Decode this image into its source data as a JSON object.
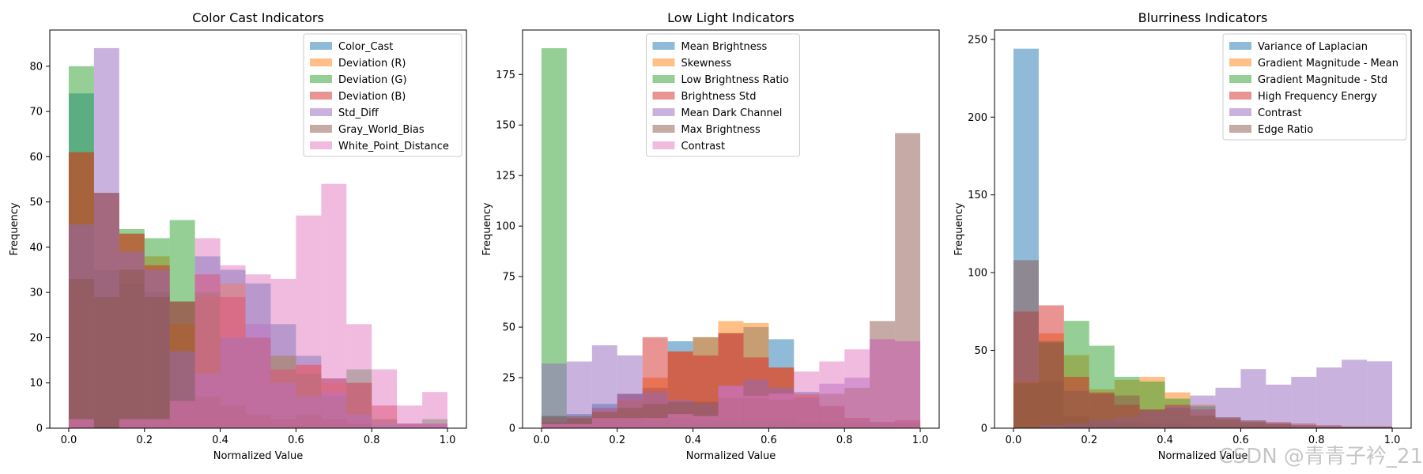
{
  "figure": {
    "xlabel": "Normalized Value",
    "ylabel": "Frequency"
  },
  "watermark": "CSDN @青青子衿_21",
  "chart_data": [
    {
      "type": "histogram",
      "title": "Color Cast Indicators",
      "xlabel": "Normalized Value",
      "ylabel": "Frequency",
      "xlim": [
        -0.05,
        1.05
      ],
      "ylim": [
        0,
        88
      ],
      "xticks": [
        0.0,
        0.2,
        0.4,
        0.6,
        0.8,
        1.0
      ],
      "yticks": [
        0,
        10,
        20,
        30,
        40,
        50,
        60,
        70,
        80
      ],
      "bins": 15,
      "legend_loc": "upper right",
      "series": [
        {
          "name": "Color_Cast",
          "color": "#1f77b4",
          "values": [
            74,
            35,
            32,
            30,
            28,
            38,
            35,
            32,
            23,
            16,
            11,
            10,
            0,
            0,
            0
          ]
        },
        {
          "name": "Deviation (R)",
          "color": "#ff7f0e",
          "values": [
            61,
            52,
            43,
            38,
            23,
            29,
            32,
            20,
            16,
            14,
            10,
            10,
            0,
            0,
            0
          ]
        },
        {
          "name": "Deviation (G)",
          "color": "#2ca02c",
          "values": [
            80,
            52,
            44,
            42,
            46,
            30,
            20,
            20,
            16,
            12,
            7,
            13,
            2,
            1,
            2
          ]
        },
        {
          "name": "Deviation (B)",
          "color": "#d62728",
          "values": [
            61,
            52,
            43,
            36,
            28,
            34,
            29,
            20,
            13,
            14,
            11,
            10,
            5,
            1,
            1
          ]
        },
        {
          "name": "Std_Diff",
          "color": "#9467bd",
          "values": [
            45,
            84,
            39,
            35,
            17,
            12,
            20,
            23,
            10,
            7,
            8,
            3,
            1,
            1,
            1
          ]
        },
        {
          "name": "Gray_World_Bias",
          "color": "#8c564b",
          "values": [
            33,
            29,
            35,
            29,
            6,
            7,
            5,
            3,
            2,
            3,
            2,
            1,
            0,
            0,
            0
          ]
        },
        {
          "name": "White_Point_Distance",
          "color": "#e377c2",
          "values": [
            2,
            0,
            2,
            2,
            6,
            42,
            36,
            34,
            33,
            47,
            54,
            23,
            13,
            5,
            8
          ]
        }
      ]
    },
    {
      "type": "histogram",
      "title": "Low Light Indicators",
      "xlabel": "Normalized Value",
      "ylabel": "Frequency",
      "xlim": [
        -0.05,
        1.05
      ],
      "ylim": [
        0,
        197
      ],
      "xticks": [
        0.0,
        0.2,
        0.4,
        0.6,
        0.8,
        1.0
      ],
      "yticks": [
        0,
        25,
        50,
        75,
        100,
        125,
        150,
        175
      ],
      "bins": 15,
      "legend_loc": "upper center",
      "series": [
        {
          "name": "Mean Brightness",
          "color": "#1f77b4",
          "values": [
            6,
            7,
            12,
            17,
            20,
            43,
            45,
            47,
            50,
            44,
            18,
            10,
            5,
            3,
            3
          ]
        },
        {
          "name": "Skewness",
          "color": "#ff7f0e",
          "values": [
            2,
            3,
            8,
            14,
            25,
            38,
            45,
            53,
            52,
            30,
            16,
            11,
            5,
            3,
            4
          ]
        },
        {
          "name": "Low Brightness Ratio",
          "color": "#2ca02c",
          "values": [
            188,
            5,
            5,
            5,
            4,
            5,
            4,
            4,
            4,
            4,
            3,
            3,
            3,
            3,
            3
          ]
        },
        {
          "name": "Brightness Std",
          "color": "#d62728",
          "values": [
            3,
            5,
            10,
            17,
            45,
            38,
            36,
            47,
            35,
            30,
            17,
            11,
            5,
            3,
            4
          ]
        },
        {
          "name": "Mean Dark Channel",
          "color": "#9467bd",
          "values": [
            32,
            33,
            41,
            36,
            18,
            14,
            12,
            21,
            24,
            20,
            15,
            22,
            25,
            44,
            43
          ]
        },
        {
          "name": "Max Brightness",
          "color": "#8c564b",
          "values": [
            6,
            6,
            8,
            10,
            12,
            13,
            13,
            15,
            15,
            14,
            15,
            17,
            20,
            53,
            146
          ]
        },
        {
          "name": "Contrast",
          "color": "#e377c2",
          "values": [
            2,
            2,
            5,
            5,
            5,
            7,
            6,
            21,
            16,
            17,
            28,
            33,
            39,
            44,
            43
          ]
        }
      ]
    },
    {
      "type": "histogram",
      "title": "Blurriness Indicators",
      "xlabel": "Normalized Value",
      "ylabel": "Frequency",
      "xlim": [
        -0.05,
        1.05
      ],
      "ylim": [
        0,
        256
      ],
      "xticks": [
        0.0,
        0.2,
        0.4,
        0.6,
        0.8,
        1.0
      ],
      "yticks": [
        0,
        50,
        100,
        150,
        200,
        250
      ],
      "bins": 15,
      "legend_loc": "upper right",
      "series": [
        {
          "name": "Variance of Laplacian",
          "color": "#1f77b4",
          "values": [
            244,
            30,
            8,
            5,
            4,
            3,
            3,
            2,
            2,
            2,
            1,
            1,
            1,
            1,
            1
          ]
        },
        {
          "name": "Gradient Magnitude - Mean",
          "color": "#ff7f0e",
          "values": [
            30,
            61,
            47,
            25,
            31,
            33,
            23,
            15,
            5,
            3,
            2,
            1,
            1,
            1,
            1
          ]
        },
        {
          "name": "Gradient Magnitude - Std",
          "color": "#2ca02c",
          "values": [
            29,
            56,
            69,
            53,
            33,
            30,
            19,
            14,
            7,
            5,
            3,
            1,
            1,
            1,
            1
          ]
        },
        {
          "name": "High Frequency Energy",
          "color": "#d62728",
          "values": [
            75,
            79,
            33,
            23,
            15,
            12,
            15,
            12,
            7,
            5,
            4,
            3,
            2,
            1,
            1
          ]
        },
        {
          "name": "Contrast",
          "color": "#9467bd",
          "values": [
            0,
            2,
            3,
            5,
            7,
            11,
            14,
            21,
            26,
            38,
            28,
            33,
            39,
            44,
            43
          ]
        },
        {
          "name": "Edge Ratio",
          "color": "#8c564b",
          "values": [
            108,
            55,
            24,
            22,
            21,
            12,
            13,
            8,
            6,
            4,
            3,
            2,
            1,
            1,
            1
          ]
        }
      ]
    }
  ]
}
